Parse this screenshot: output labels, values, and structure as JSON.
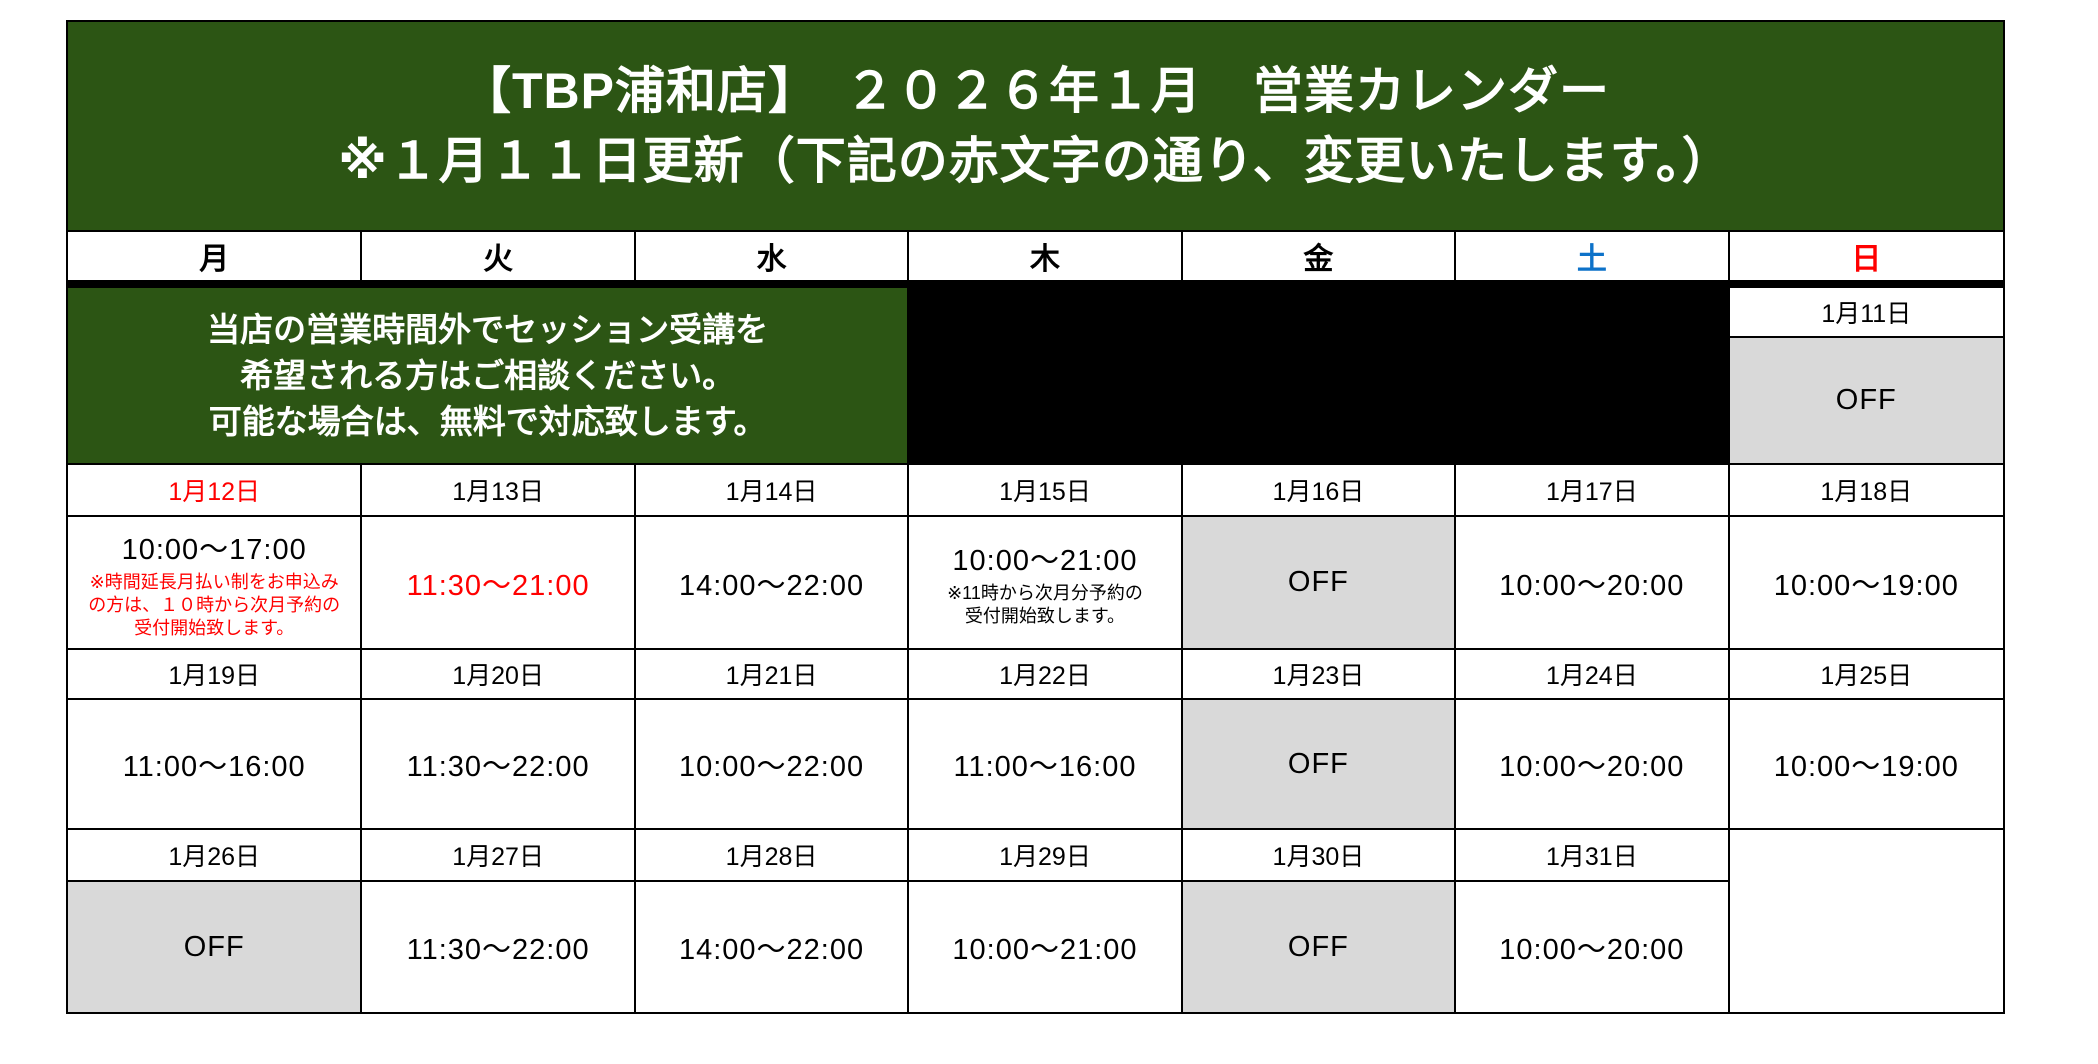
{
  "colors": {
    "banner_green": "#2c5514",
    "off_grey": "#d9d9d9",
    "red_text": "#ff0000",
    "saturday_blue": "#0d72c9",
    "closed_block": "#000000"
  },
  "banner": {
    "line1": "【TBP浦和店】　２０２６年１月　営業カレンダー",
    "line2": "※１月１１日更新（下記の赤文字の通り、変更いたします。）"
  },
  "weekdays": [
    {
      "label": "月",
      "color": "black"
    },
    {
      "label": "火",
      "color": "black"
    },
    {
      "label": "水",
      "color": "black"
    },
    {
      "label": "木",
      "color": "black"
    },
    {
      "label": "金",
      "color": "black"
    },
    {
      "label": "土",
      "color": "blue"
    },
    {
      "label": "日",
      "color": "red"
    }
  ],
  "notice": {
    "text": "当店の営業時間外でセッション受講を\n希望される方はご相談ください。\n可能な場合は、無料で対応致します。"
  },
  "week1": {
    "sunday_date": "1月11日",
    "sunday_status": "OFF"
  },
  "weeks": [
    {
      "cells": [
        {
          "date": "1月12日",
          "dateRed": true,
          "time": "10:00～17:00",
          "note": "※時間延長月払い制をお申込み\nの方は、１０時から次月予約の\n受付開始致します。",
          "noteRed": true
        },
        {
          "date": "1月13日",
          "time": "11:30～21:00",
          "timeRed": true
        },
        {
          "date": "1月14日",
          "time": "14:00～22:00"
        },
        {
          "date": "1月15日",
          "time": "10:00～21:00",
          "note": "※11時から次月分予約の\n受付開始致します。"
        },
        {
          "date": "1月16日",
          "off": true,
          "status": "OFF"
        },
        {
          "date": "1月17日",
          "time": "10:00～20:00"
        },
        {
          "date": "1月18日",
          "time": "10:00～19:00"
        }
      ]
    },
    {
      "cells": [
        {
          "date": "1月19日",
          "time": "11:00～16:00"
        },
        {
          "date": "1月20日",
          "time": "11:30～22:00"
        },
        {
          "date": "1月21日",
          "time": "10:00～22:00"
        },
        {
          "date": "1月22日",
          "time": "11:00～16:00"
        },
        {
          "date": "1月23日",
          "off": true,
          "status": "OFF"
        },
        {
          "date": "1月24日",
          "time": "10:00～20:00"
        },
        {
          "date": "1月25日",
          "time": "10:00～19:00"
        }
      ]
    },
    {
      "cells": [
        {
          "date": "1月26日",
          "off": true,
          "status": "OFF"
        },
        {
          "date": "1月27日",
          "time": "11:30～22:00"
        },
        {
          "date": "1月28日",
          "time": "14:00～22:00"
        },
        {
          "date": "1月29日",
          "time": "10:00～21:00"
        },
        {
          "date": "1月30日",
          "off": true,
          "status": "OFF"
        },
        {
          "date": "1月31日",
          "time": "10:00～20:00"
        },
        {
          "empty": true
        }
      ]
    }
  ]
}
